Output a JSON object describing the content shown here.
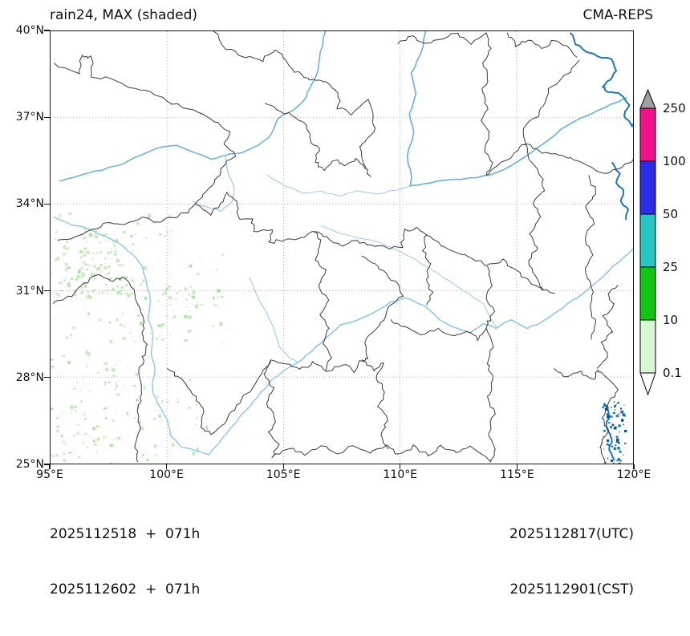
{
  "header": {
    "title_left": "rain24, MAX (shaded)",
    "title_right": "CMA-REPS"
  },
  "axes": {
    "y_tick_labels": [
      "40°N",
      "37°N",
      "34°N",
      "31°N",
      "28°N",
      "25°N"
    ],
    "y_tick_lats": [
      40,
      37,
      34,
      31,
      28,
      25
    ],
    "x_tick_labels": [
      "95°E",
      "100°E",
      "105°E",
      "110°E",
      "115°E",
      "120°E"
    ],
    "x_tick_lons": [
      95,
      100,
      105,
      110,
      115,
      120
    ]
  },
  "map": {
    "extent": {
      "lon_min": 95,
      "lon_max": 120,
      "lat_min": 25,
      "lat_max": 40
    },
    "gridline_lons": [
      100,
      105,
      110,
      115
    ],
    "gridline_lats": [
      37,
      34,
      31,
      28
    ],
    "colors": {
      "boundary": "#3a3a3a",
      "river": "#8ec6ee",
      "river_major": "#64aee4",
      "coast": "#1f77b4",
      "coast_dark": "#0d4f86",
      "gridline": "#9a9a9a",
      "rain_light": "#c2ecb8",
      "rain_light2": "#a8e49a"
    },
    "rain_clusters": [
      {
        "lon": [
          95.1,
          98.5
        ],
        "lat": [
          30.8,
          33.1
        ],
        "n": 110
      },
      {
        "lon": [
          95.0,
          100.2
        ],
        "lat": [
          29.2,
          33.8
        ],
        "n": 80
      },
      {
        "lon": [
          98.4,
          102.4
        ],
        "lat": [
          29.2,
          32.5
        ],
        "n": 40
      },
      {
        "lon": [
          95.0,
          99.0
        ],
        "lat": [
          25.0,
          29.0
        ],
        "n": 95
      },
      {
        "lon": [
          99.0,
          101.7
        ],
        "lat": [
          25.0,
          28.1
        ],
        "n": 22
      },
      {
        "lon": [
          100.2,
          102.2
        ],
        "lat": [
          30.3,
          31.9
        ],
        "n": 10
      }
    ]
  },
  "colorbar": {
    "tick_labels": [
      "250",
      "100",
      "50",
      "25",
      "10",
      "0.1"
    ],
    "segment_colors_top_to_bottom": [
      "#f01289",
      "#2b2be8",
      "#28c5c5",
      "#0fc613",
      "#d6f8d2"
    ],
    "over_color": "#a0a0a0",
    "under_color": "#ffffff",
    "outline_color": "#000000"
  },
  "footer": {
    "left_lines": [
      "2025112518  +  071h",
      "2025112602  +  071h"
    ],
    "right_lines": [
      "2025112817(UTC)",
      "2025112901(CST)"
    ]
  }
}
